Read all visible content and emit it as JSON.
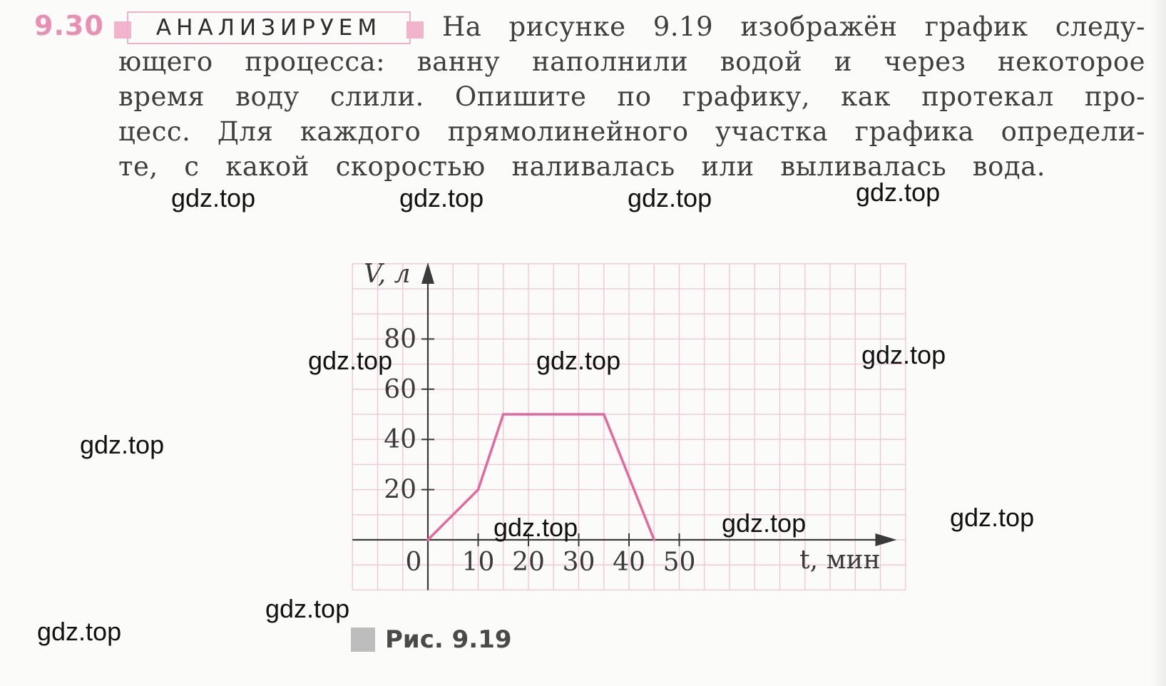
{
  "problem": {
    "number": "9.30",
    "tag": "АНАЛИЗИРУЕМ",
    "text_lines": [
      "На рисунке 9.19 изображён график следу-",
      "ющего процесса: ванну наполнили водой и через некоторое",
      "время воду слили. Опишите по графику, как протекал про-",
      "цесс. Для каждого прямолинейного участка графика определи-",
      "те, с какой скоростью наливалась или выливалась вода."
    ]
  },
  "figure": {
    "caption": "Рис. 9.19"
  },
  "watermark": "gdz.top",
  "chart_data": {
    "type": "line",
    "x": [
      0,
      10,
      15,
      35,
      45
    ],
    "series": [
      {
        "values": [
          0,
          20,
          50,
          50,
          0
        ]
      }
    ],
    "x_ticks": [
      0,
      10,
      20,
      30,
      40,
      50
    ],
    "y_ticks": [
      20,
      40,
      60,
      80
    ],
    "xlabel": "t, мин",
    "ylabel": "V, л",
    "xlim": [
      -15,
      95
    ],
    "ylim": [
      -20,
      110
    ],
    "grid": true,
    "colors": {
      "line": "#e5679c",
      "grid": "#f0c4d6",
      "axis": "#3a3a3a"
    }
  }
}
